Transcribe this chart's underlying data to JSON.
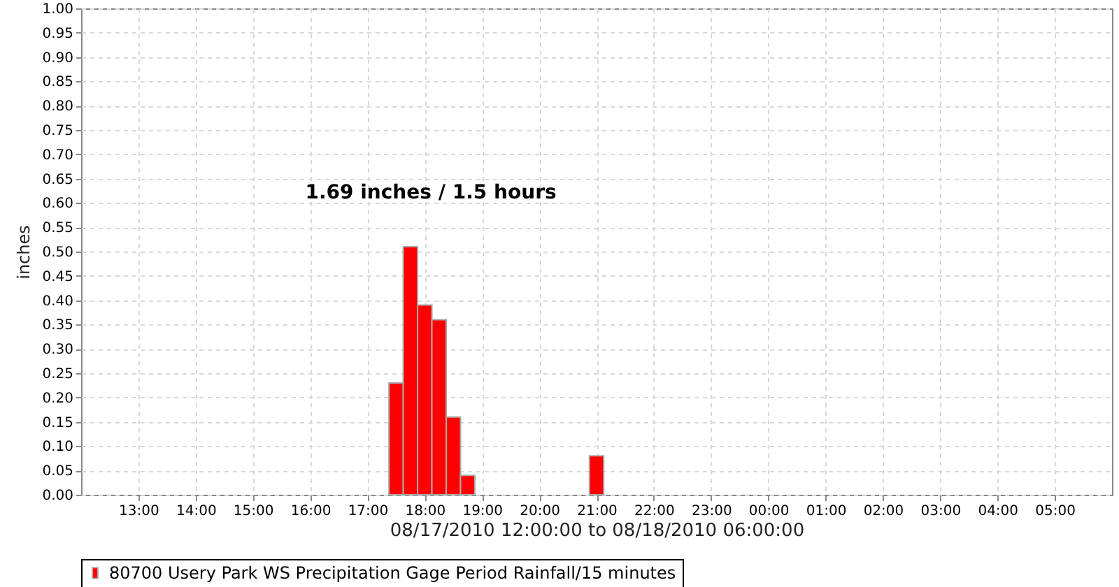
{
  "chart_data": {
    "type": "bar",
    "xlabel": "08/17/2010 12:00:00 to 08/18/2010 06:00:00",
    "ylabel": "inches",
    "annotations": [
      "1.69 inches / 1.5 hours"
    ],
    "x": [
      "2010-08-17T17:30",
      "2010-08-17T17:45",
      "2010-08-17T18:00",
      "2010-08-17T18:15",
      "2010-08-17T18:30",
      "2010-08-17T18:45",
      "2010-08-17T21:00"
    ],
    "series": [
      {
        "name": "80700 Usery Park WS Precipitation Gage Period Rainfall/15 minutes",
        "color": "#ff0000",
        "values": [
          0.23,
          0.51,
          0.39,
          0.36,
          0.16,
          0.04,
          0.08
        ]
      }
    ],
    "xlim": [
      "2010-08-17T12:00",
      "2010-08-18T06:00"
    ],
    "xticks": [
      {
        "value": "2010-08-17T13:00",
        "label": "13:00"
      },
      {
        "value": "2010-08-17T14:00",
        "label": "14:00"
      },
      {
        "value": "2010-08-17T15:00",
        "label": "15:00"
      },
      {
        "value": "2010-08-17T16:00",
        "label": "16:00"
      },
      {
        "value": "2010-08-17T17:00",
        "label": "17:00"
      },
      {
        "value": "2010-08-17T18:00",
        "label": "18:00"
      },
      {
        "value": "2010-08-17T19:00",
        "label": "19:00"
      },
      {
        "value": "2010-08-17T20:00",
        "label": "20:00"
      },
      {
        "value": "2010-08-17T21:00",
        "label": "21:00"
      },
      {
        "value": "2010-08-17T22:00",
        "label": "22:00"
      },
      {
        "value": "2010-08-17T23:00",
        "label": "23:00"
      },
      {
        "value": "2010-08-18T00:00",
        "label": "00:00"
      },
      {
        "value": "2010-08-18T01:00",
        "label": "01:00"
      },
      {
        "value": "2010-08-18T02:00",
        "label": "02:00"
      },
      {
        "value": "2010-08-18T03:00",
        "label": "03:00"
      },
      {
        "value": "2010-08-18T04:00",
        "label": "04:00"
      },
      {
        "value": "2010-08-18T05:00",
        "label": "05:00"
      }
    ],
    "ylim": [
      0,
      1
    ],
    "yticks": [
      {
        "value": 0,
        "label": "0.00"
      },
      {
        "value": 0.05,
        "label": "0.05"
      },
      {
        "value": 0.1,
        "label": "0.10"
      },
      {
        "value": 0.15,
        "label": "0.15"
      },
      {
        "value": 0.2,
        "label": "0.20"
      },
      {
        "value": 0.25,
        "label": "0.25"
      },
      {
        "value": 0.3,
        "label": "0.30"
      },
      {
        "value": 0.35,
        "label": "0.35"
      },
      {
        "value": 0.4,
        "label": "0.40"
      },
      {
        "value": 0.45,
        "label": "0.45"
      },
      {
        "value": 0.5,
        "label": "0.50"
      },
      {
        "value": 0.55,
        "label": "0.55"
      },
      {
        "value": 0.6,
        "label": "0.60"
      },
      {
        "value": 0.65,
        "label": "0.65"
      },
      {
        "value": 0.7,
        "label": "0.70"
      },
      {
        "value": 0.75,
        "label": "0.75"
      },
      {
        "value": 0.8,
        "label": "0.80"
      },
      {
        "value": 0.85,
        "label": "0.85"
      },
      {
        "value": 0.9,
        "label": "0.90"
      },
      {
        "value": 0.95,
        "label": "0.95"
      },
      {
        "value": 1,
        "label": "1.00"
      }
    ],
    "grid": true,
    "legend": "bottom"
  }
}
